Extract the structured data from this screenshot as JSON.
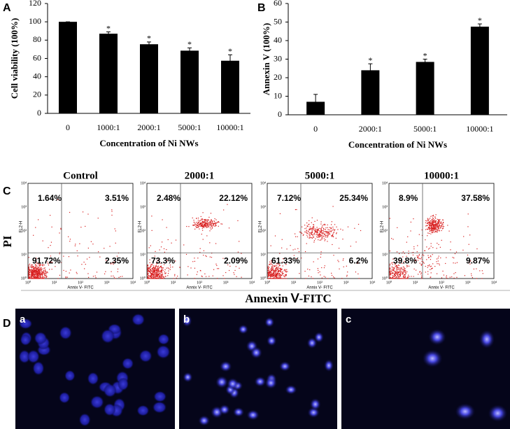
{
  "chart_data": [
    {
      "type": "bar",
      "panel": "A",
      "categories": [
        "0",
        "1000:1",
        "2000:1",
        "5000:1",
        "10000:1"
      ],
      "values": [
        100,
        87,
        75.5,
        68.5,
        57.5
      ],
      "errors": [
        0,
        2,
        2.5,
        3,
        6.5
      ],
      "annotations": [
        null,
        "*",
        "*",
        "*",
        "*"
      ],
      "ylabel": "Cell viability (100%)",
      "xlabel": "Concentration of Ni NWs",
      "ylim": [
        0,
        120
      ],
      "yticks": [
        0,
        20,
        40,
        60,
        80,
        100,
        120
      ],
      "color": "#000000"
    },
    {
      "type": "bar",
      "panel": "B",
      "categories": [
        "0",
        "2000:1",
        "5000:1",
        "10000:1"
      ],
      "values": [
        7,
        24,
        28.5,
        47.5
      ],
      "errors": [
        4,
        3.5,
        1.5,
        1.5
      ],
      "annotations": [
        null,
        "*",
        "*",
        "*"
      ],
      "ylabel": "Annexin V (100%)",
      "xlabel": "Concentration of Ni NWs",
      "ylim": [
        0,
        60
      ],
      "yticks": [
        0,
        10,
        20,
        30,
        40,
        50,
        60
      ],
      "color": "#000000"
    }
  ],
  "flow": {
    "panel": "C",
    "y_label": "PI",
    "x_label": "Annexin Ⅴ-FITC",
    "axis_y_label": "FL2-H",
    "axis_x_label": "Annix V- FITC",
    "axis_ticks": [
      "10⁰",
      "10¹",
      "10²",
      "10³",
      "10⁴"
    ],
    "plots": [
      {
        "title": "Control",
        "quadrants": [
          "1.64%",
          "3.51%",
          "91.72%",
          "2.35%"
        ]
      },
      {
        "title": "2000:1",
        "quadrants": [
          "2.48%",
          "22.12%",
          "73.3%",
          "2.09%"
        ]
      },
      {
        "title": "5000:1",
        "quadrants": [
          "7.12%",
          "25.34%",
          "61.33%",
          "6.2%"
        ]
      },
      {
        "title": "10000:1",
        "quadrants": [
          "8.9%",
          "37.58%",
          "39.8%",
          "9.87%"
        ]
      }
    ]
  },
  "images": {
    "panel": "D",
    "labels": [
      "a",
      "b",
      "c"
    ]
  }
}
